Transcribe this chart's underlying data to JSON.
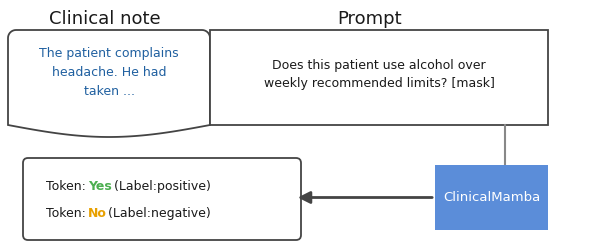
{
  "title_left": "Clinical note",
  "title_right": "Prompt",
  "clinical_text": "The patient complains\nheadache. He had\ntaken ...",
  "prompt_text": "Does this patient use alcohol over\nweekly recommended limits? [mask]",
  "token_yes_prefix": "Token: ",
  "token_yes_word": "Yes",
  "token_yes_suffix": " (Label:positive)",
  "token_no_prefix": "Token: ",
  "token_no_word": "No",
  "token_no_suffix": " (Label:negative)",
  "mamba_label": "ClinicalMamba",
  "clinical_text_color": "#2060a0",
  "prompt_text_color": "#1a1a1a",
  "yes_color": "#4caf50",
  "no_color": "#e8a000",
  "token_text_color": "#1a1a1a",
  "mamba_bg_color": "#5b8dd9",
  "mamba_text_color": "#ffffff",
  "box_bg_color": "#ffffff",
  "box_border_color": "#444444",
  "arrow_color": "#444444",
  "connector_color": "#888888",
  "background_color": "#ffffff"
}
